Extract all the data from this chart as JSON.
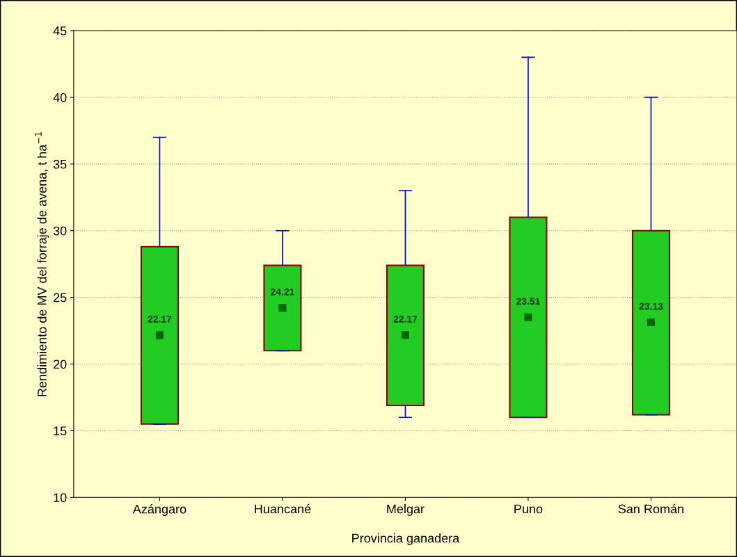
{
  "chart_data": {
    "type": "box",
    "xlabel": "Provincia ganadera",
    "ylabel": "Rendimiento de MV del forraje de avena, t ha$^{−1}$",
    "categories": [
      "Azángaro",
      "Huancané",
      "Melgar",
      "Puno",
      "San Román"
    ],
    "series": [
      {
        "color": "#22cc22",
        "boxes": [
          {
            "low": 15.5,
            "q1": 15.5,
            "median": 22.17,
            "q3": 28.8,
            "high": 37
          },
          {
            "low": 21.0,
            "q1": 21.0,
            "median": 24.21,
            "q3": 27.4,
            "high": 30
          },
          {
            "low": 16.0,
            "q1": 16.9,
            "median": 22.17,
            "q3": 27.4,
            "high": 33
          },
          {
            "low": 16.0,
            "q1": 16.0,
            "median": 23.51,
            "q3": 31.0,
            "high": 43
          },
          {
            "low": 16.2,
            "q1": 16.2,
            "median": 23.13,
            "q3": 30.0,
            "high": 40
          }
        ],
        "value_labels": [
          "22.17",
          "24.21",
          "22.17",
          "23.51",
          "23.13"
        ]
      }
    ],
    "ylim": [
      10,
      45
    ],
    "yticks": [
      10,
      15,
      20,
      25,
      30,
      35,
      40,
      45
    ],
    "grid": "y",
    "marker": "square"
  }
}
